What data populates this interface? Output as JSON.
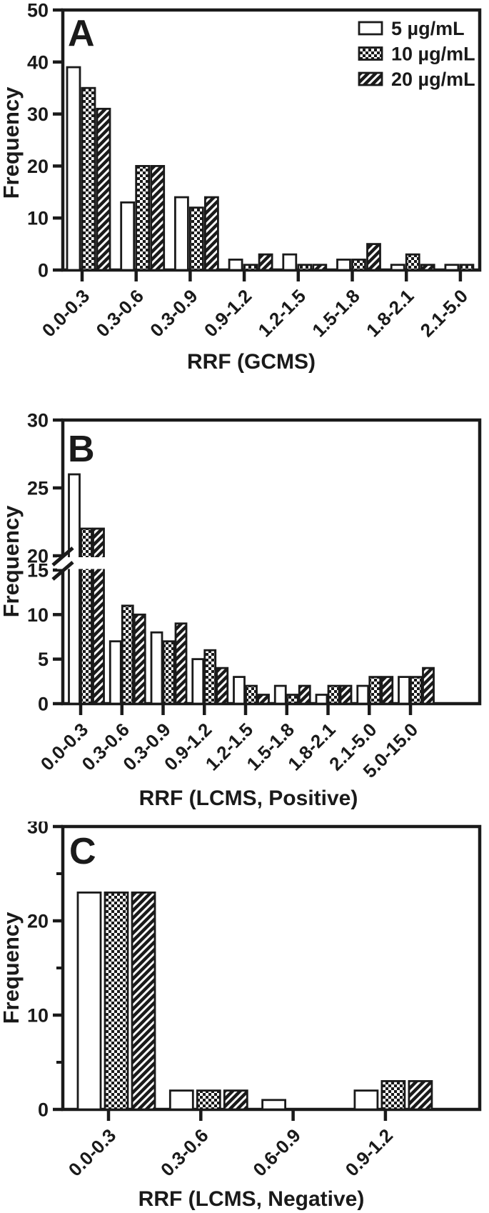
{
  "ink_color": "#1a1a1a",
  "legend": {
    "position": "top-right-panel-A",
    "items": [
      {
        "label": "5 µg/mL",
        "pattern": "open"
      },
      {
        "label": "10 µg/mL",
        "pattern": "checker"
      },
      {
        "label": "20 µg/mL",
        "pattern": "hatch"
      }
    ]
  },
  "chart_data": [
    {
      "type": "bar",
      "panel_label": "A",
      "title": "",
      "xlabel": "RRF (GCMS)",
      "ylabel": "Frequency",
      "categories": [
        "0.0-0.3",
        "0.3-0.6",
        "0.3-0.9",
        "0.9-1.2",
        "1.2-1.5",
        "1.5-1.8",
        "1.8-2.1",
        "2.1-5.0"
      ],
      "series": [
        {
          "name": "5 µg/mL",
          "pattern": "open",
          "values": [
            39,
            13,
            14,
            2,
            3,
            2,
            1,
            1
          ]
        },
        {
          "name": "10 µg/mL",
          "pattern": "checker",
          "values": [
            35,
            20,
            12,
            1,
            1,
            2,
            3,
            1
          ]
        },
        {
          "name": "20 µg/mL",
          "pattern": "hatch",
          "values": [
            31,
            20,
            14,
            3,
            1,
            5,
            1,
            0
          ]
        }
      ],
      "ylim": [
        0,
        50
      ],
      "yticks": [
        0,
        10,
        20,
        30,
        40,
        50
      ],
      "grid": false,
      "legend_position": "top-right"
    },
    {
      "type": "bar",
      "panel_label": "B",
      "title": "",
      "xlabel": "RRF (LCMS, Positive)",
      "ylabel": "Frequency",
      "categories": [
        "0.0-0.3",
        "0.3-0.6",
        "0.3-0.9",
        "0.9-1.2",
        "1.2-1.5",
        "1.5-1.8",
        "1.8-2.1",
        "2.1-5.0",
        "5.0-15.0"
      ],
      "series": [
        {
          "name": "5 µg/mL",
          "pattern": "open",
          "values": [
            26,
            7,
            8,
            5,
            3,
            2,
            1,
            2,
            3
          ]
        },
        {
          "name": "10 µg/mL",
          "pattern": "checker",
          "values": [
            22,
            11,
            7,
            6,
            2,
            1,
            2,
            3,
            3
          ]
        },
        {
          "name": "20 µg/mL",
          "pattern": "hatch",
          "values": [
            22,
            10,
            9,
            4,
            1,
            2,
            2,
            3,
            4
          ]
        }
      ],
      "ylim": [
        0,
        30
      ],
      "yticks": [
        0,
        5,
        10,
        15,
        20,
        25,
        30
      ],
      "axis_break": {
        "between": [
          15,
          20
        ]
      },
      "grid": false
    },
    {
      "type": "bar",
      "panel_label": "C",
      "title": "",
      "xlabel": "RRF (LCMS, Negative)",
      "ylabel": "Frequency",
      "categories": [
        "0.0-0.3",
        "0.3-0.6",
        "0.6-0.9",
        "0.9-1.2"
      ],
      "series": [
        {
          "name": "5 µg/mL",
          "pattern": "open",
          "values": [
            23,
            2,
            1,
            2
          ]
        },
        {
          "name": "10 µg/mL",
          "pattern": "checker",
          "values": [
            23,
            2,
            0,
            3
          ]
        },
        {
          "name": "20 µg/mL",
          "pattern": "hatch",
          "values": [
            23,
            2,
            0,
            3
          ]
        }
      ],
      "ylim": [
        0,
        30
      ],
      "yticks": [
        0,
        10,
        20,
        30
      ],
      "yticks_minor": [
        5,
        15,
        25
      ],
      "grid": false
    }
  ]
}
